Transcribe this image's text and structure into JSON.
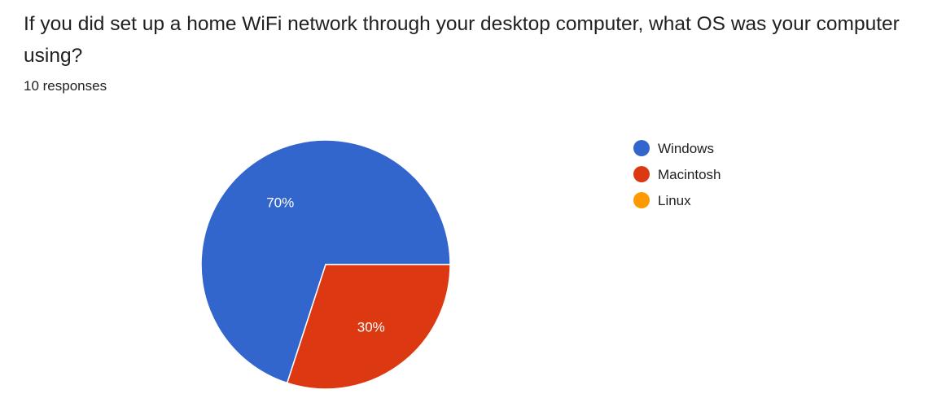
{
  "question": {
    "title": "If you did set up a home WiFi network through your desktop computer, what OS was your computer using?",
    "response_count": "10 responses"
  },
  "chart_data": {
    "type": "pie",
    "categories": [
      "Windows",
      "Macintosh",
      "Linux"
    ],
    "values": [
      70,
      30,
      0
    ],
    "value_labels": [
      "70%",
      "30%",
      ""
    ],
    "colors": [
      "#3366cc",
      "#dc3912",
      "#ff9900"
    ],
    "legend_position": "right",
    "unit": "%"
  }
}
